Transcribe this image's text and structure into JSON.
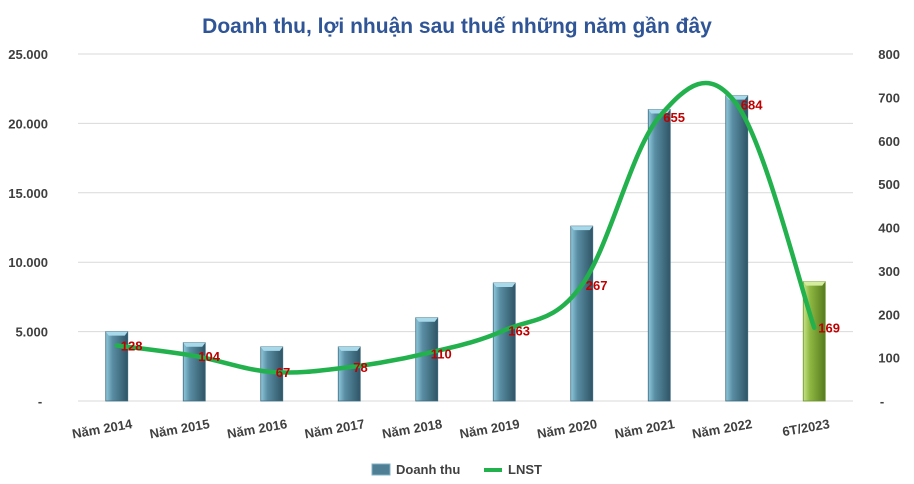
{
  "chart_data": {
    "type": "bar",
    "title": "Doanh thu, lợi nhuận sau thuế những năm gần đây",
    "categories": [
      "Năm 2014",
      "Năm 2015",
      "Năm 2016",
      "Năm 2017",
      "Năm 2018",
      "Năm 2019",
      "Năm 2020",
      "Năm 2021",
      "Năm 2022",
      "6T/2023"
    ],
    "series": [
      {
        "name": "Doanh thu",
        "type": "bar",
        "axis": "left",
        "values": [
          5000,
          4200,
          3900,
          3900,
          6000,
          8500,
          12600,
          21000,
          22000,
          8600
        ],
        "color": "#4e7f94",
        "highlight_color": "#8fb842"
      },
      {
        "name": "LNST",
        "type": "line",
        "axis": "right",
        "values": [
          128,
          104,
          67,
          78,
          110,
          163,
          267,
          655,
          684,
          169
        ],
        "labels": [
          "128",
          "104",
          "67",
          "78",
          "110",
          "163",
          "267",
          "655",
          "684",
          "169"
        ],
        "color": "#22b14c"
      }
    ],
    "y_left": {
      "min": 0,
      "max": 25000,
      "ticks": [
        "-",
        "5.000",
        "10.000",
        "15.000",
        "20.000",
        "25.000"
      ],
      "tick_values": [
        0,
        5000,
        10000,
        15000,
        20000,
        25000
      ]
    },
    "y_right": {
      "min": 0,
      "max": 800,
      "ticks": [
        "-",
        "100",
        "200",
        "300",
        "400",
        "500",
        "600",
        "700",
        "800"
      ],
      "tick_values": [
        0,
        100,
        200,
        300,
        400,
        500,
        600,
        700,
        800
      ]
    },
    "grid": true,
    "legend_position": "bottom",
    "label_color": "#c00000"
  }
}
